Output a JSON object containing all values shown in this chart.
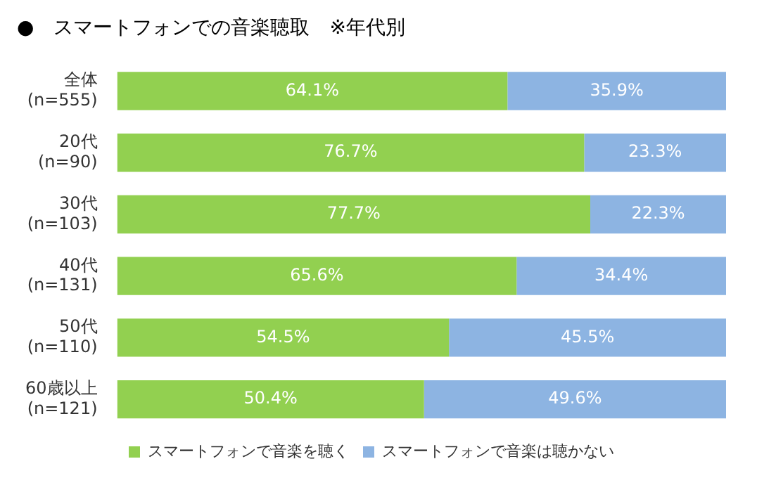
{
  "chart_data": {
    "type": "bar",
    "orientation": "horizontal",
    "stacked": true,
    "title": "●　スマートフォンでの音楽聴取　※年代別",
    "categories": [
      "全体\n(n=555)",
      "20代\n(n=90)",
      "30代\n(n=103)",
      "40代\n(n=131)",
      "50代\n(n=110)",
      "60歳以上\n(n=121)"
    ],
    "series": [
      {
        "name": "スマートフォンで音楽を聴く",
        "color": "#92d050",
        "values": [
          64.1,
          76.7,
          77.7,
          65.6,
          54.5,
          50.4
        ],
        "value_labels": [
          "64.1%",
          "76.7%",
          "77.7%",
          "65.6%",
          "54.5%",
          "50.4%"
        ]
      },
      {
        "name": "スマートフォンで音楽は聴かない",
        "color": "#8db4e2",
        "values": [
          35.9,
          23.3,
          22.3,
          34.4,
          45.5,
          49.6
        ],
        "value_labels": [
          "35.9%",
          "23.3%",
          "22.3%",
          "34.4%",
          "45.5%",
          "49.6%"
        ]
      }
    ],
    "xlim": [
      0,
      100
    ],
    "tick_labels": "y",
    "legend": "bottom"
  }
}
